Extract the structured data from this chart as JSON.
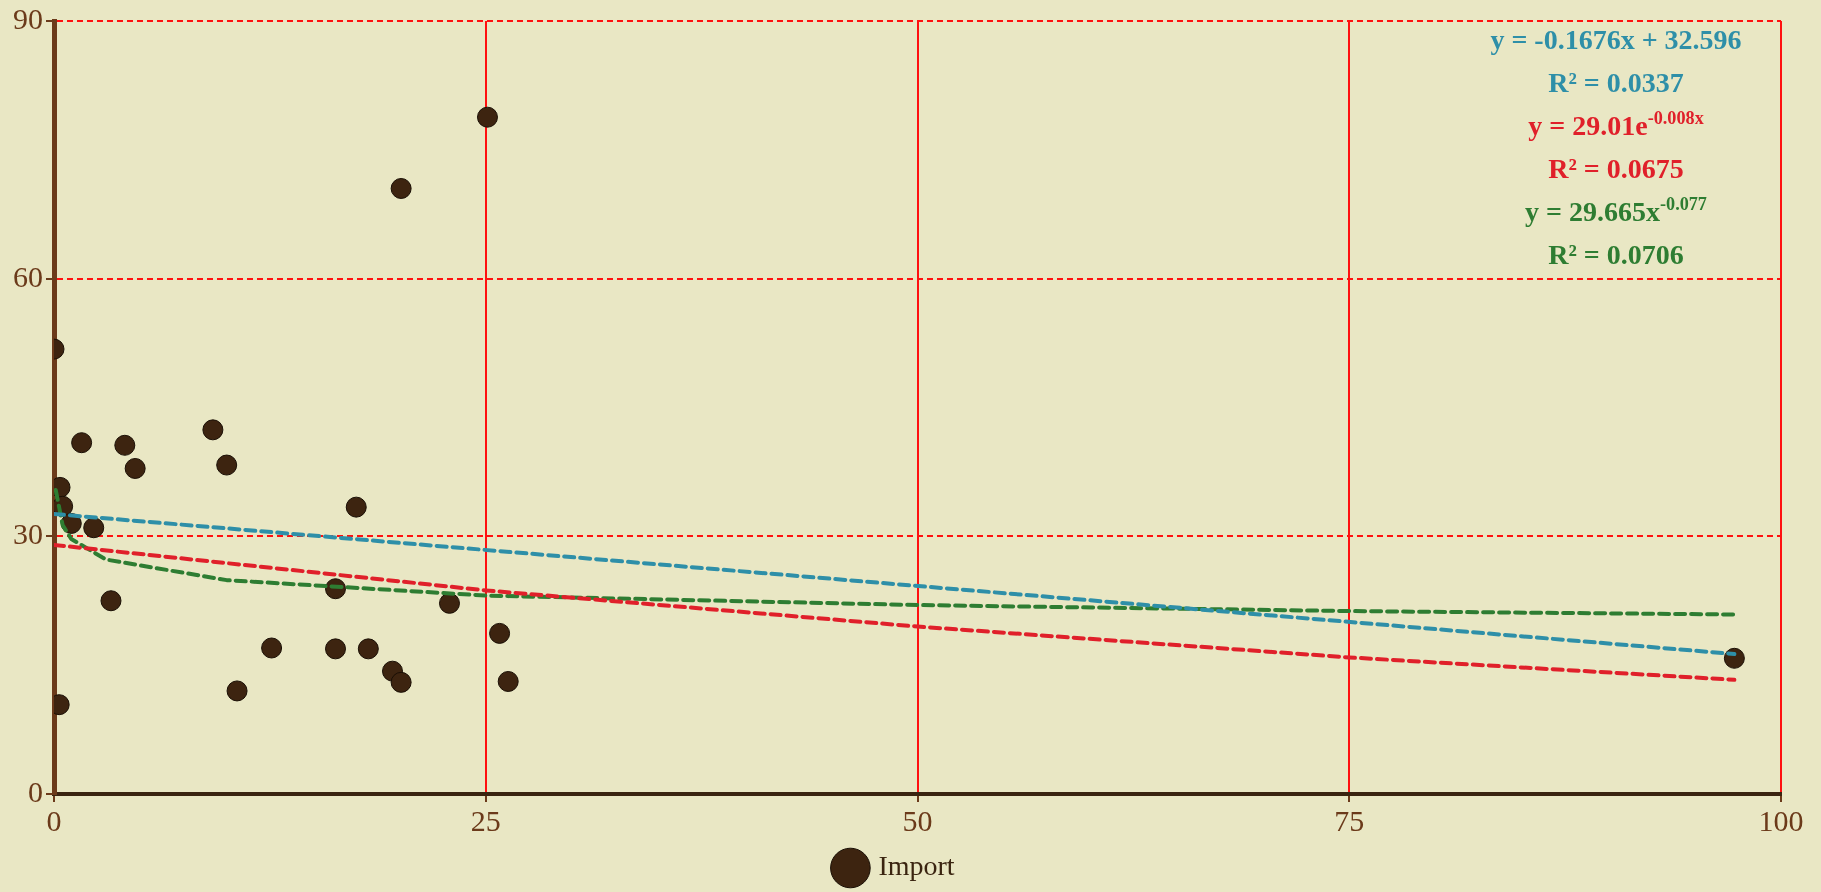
{
  "chart_data": {
    "type": "scatter",
    "xlim": [
      0,
      100
    ],
    "xticks": [
      0,
      25,
      50,
      75,
      100
    ],
    "ylim": [
      0,
      90
    ],
    "yticks": [
      0,
      30,
      60,
      90
    ],
    "grid": true,
    "legend": "bottom",
    "marker": "circle",
    "series": [
      {
        "name": "Import",
        "color": "#3d2410",
        "x": [
          0,
          0.3,
          0.35,
          0.5,
          1.0,
          1.6,
          2.3,
          3.3,
          4.1,
          4.7,
          9.2,
          10.0,
          10.6,
          12.6,
          16.3,
          16.3,
          17.5,
          18.2,
          19.6,
          20.1,
          20.1,
          22.9,
          25.1,
          25.8,
          26.3,
          97.3
        ],
        "values": [
          51.8,
          10.4,
          35.7,
          33.5,
          31.5,
          40.9,
          31.0,
          22.5,
          40.6,
          37.9,
          42.4,
          38.3,
          12.0,
          17.0,
          23.9,
          16.9,
          33.4,
          16.9,
          14.3,
          13.0,
          70.5,
          22.2,
          78.8,
          18.7,
          13.1,
          15.8
        ]
      },
      {
        "type": "line",
        "line_style": "dashed",
        "marker": "none",
        "color": "#2e8fa8",
        "x": [
          0,
          97.3
        ],
        "values": [
          32.6,
          16.3
        ]
      },
      {
        "type": "line",
        "line_style": "dashed",
        "marker": "none",
        "color": "#e0202a",
        "x": [
          0,
          25,
          50,
          75,
          97.3
        ],
        "values": [
          29.0,
          23.7,
          19.5,
          15.9,
          13.3
        ]
      },
      {
        "type": "line",
        "line_style": "dashed",
        "marker": "none",
        "color": "#2e7d32",
        "x": [
          0.1,
          0.5,
          1,
          3,
          10,
          25,
          50,
          75,
          97.3
        ],
        "values": [
          35.4,
          31.3,
          29.7,
          27.3,
          24.9,
          23.1,
          22.0,
          21.3,
          20.9
        ]
      }
    ],
    "annotations": [
      "y = -0.1676x + 32.596",
      "R² = 0.0337",
      "y = 29.01e$^{-0.008x}$",
      "R² = 0.0675",
      "y = 29.665x$^{-0.077}$",
      "R² = 0.0706"
    ]
  }
}
